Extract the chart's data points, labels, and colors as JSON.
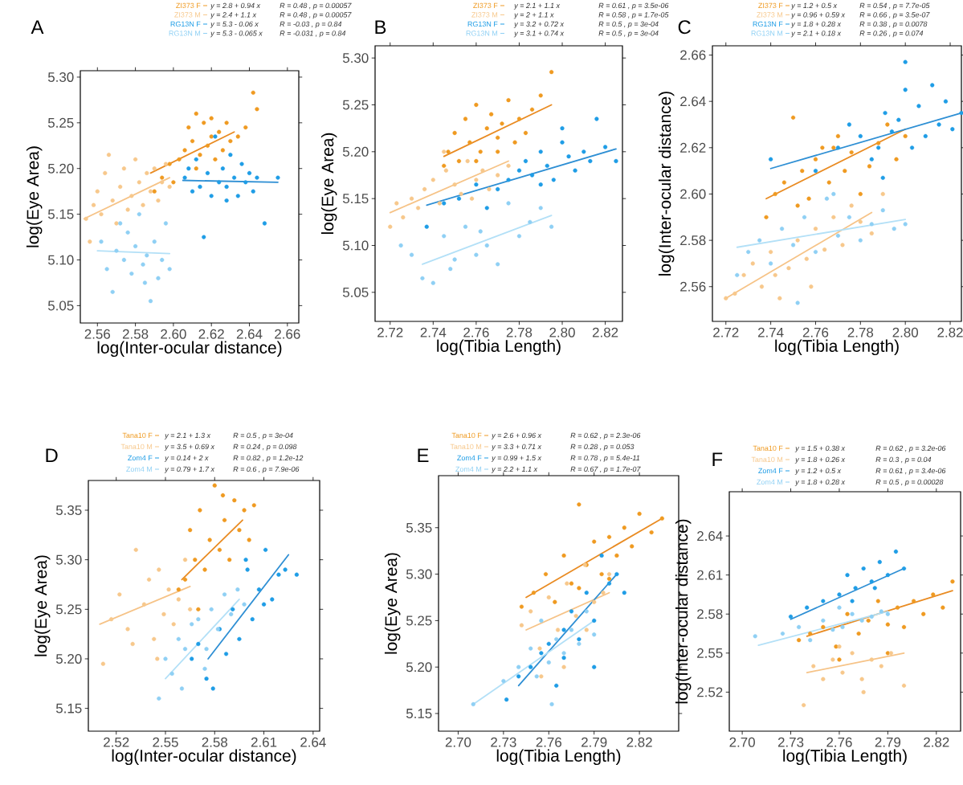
{
  "chart_data": [
    {
      "type": "scatter",
      "title": "A",
      "xlabel": "log(Inter-ocular distance)",
      "ylabel": "log(Eye Area)",
      "legend": "top",
      "xlim": [
        2.551,
        2.666
      ],
      "ylim": [
        5.031,
        5.307
      ],
      "xticks": [
        2.56,
        2.58,
        {
          "value": 2.6,
          "label": "2.60"
        },
        2.62,
        2.64,
        2.66
      ],
      "yticks": [
        5.05,
        {
          "value": 5.1,
          "label": "5.10"
        },
        5.15,
        {
          "value": 5.2,
          "label": "5.20"
        },
        5.25,
        {
          "value": 5.3,
          "label": "5.30"
        }
      ],
      "annotations": [
        "y = 2.8 + 0.94 x",
        "R = 0.48 , p = 0.00057",
        "y = 2.4 + 1.1 x",
        "R = 0.48 , p = 0.00057",
        "y = 5.3 - 0.06 x",
        "R = -0.03 , p = 0.84",
        "y = 5.3 - 0.065 x",
        "R = -0.031 , p = 0.84"
      ],
      "series": [
        {
          "name": "ZI373 F",
          "marker": "circle",
          "color": "#ef9a21",
          "x": [
            2.594,
            2.598,
            2.6,
            2.603,
            2.606,
            2.608,
            2.61,
            2.612,
            2.614,
            2.616,
            2.618,
            2.62,
            2.622,
            2.624,
            2.626,
            2.628,
            2.63,
            2.634,
            2.638,
            2.642,
            2.644,
            2.59,
            2.612,
            2.62
          ],
          "values": [
            5.19,
            5.205,
            5.185,
            5.21,
            5.22,
            5.245,
            5.23,
            5.26,
            5.215,
            5.25,
            5.225,
            5.235,
            5.21,
            5.24,
            5.22,
            5.25,
            5.23,
            5.235,
            5.245,
            5.283,
            5.265,
            5.175,
            5.2,
            5.255
          ]
        },
        {
          "name": "ZI373 M",
          "marker": "circle",
          "color": "#f7c88c",
          "x": [
            2.554,
            2.556,
            2.558,
            2.56,
            2.562,
            2.564,
            2.566,
            2.568,
            2.57,
            2.572,
            2.574,
            2.576,
            2.578,
            2.58,
            2.582,
            2.584,
            2.586,
            2.588,
            2.59,
            2.592,
            2.594,
            2.596,
            2.598
          ],
          "values": [
            5.145,
            5.12,
            5.16,
            5.175,
            5.15,
            5.195,
            5.215,
            5.165,
            5.14,
            5.18,
            5.2,
            5.155,
            5.17,
            5.21,
            5.185,
            5.16,
            5.195,
            5.175,
            5.2,
            5.165,
            5.185,
            5.205,
            5.18
          ]
        },
        {
          "name": "RG13N F",
          "marker": "circle",
          "color": "#1f9de6",
          "x": [
            2.606,
            2.608,
            2.61,
            2.612,
            2.614,
            2.616,
            2.618,
            2.62,
            2.622,
            2.624,
            2.626,
            2.628,
            2.63,
            2.632,
            2.634,
            2.636,
            2.638,
            2.64,
            2.642,
            2.644,
            2.648,
            2.655,
            2.628
          ],
          "values": [
            5.19,
            5.2,
            5.175,
            5.21,
            5.18,
            5.125,
            5.195,
            5.17,
            5.235,
            5.185,
            5.2,
            5.18,
            5.215,
            5.19,
            5.17,
            5.205,
            5.185,
            5.195,
            5.175,
            5.19,
            5.14,
            5.19,
            5.165
          ]
        },
        {
          "name": "RG13N M",
          "marker": "circle",
          "color": "#8fd0f4",
          "x": [
            2.562,
            2.565,
            2.568,
            2.57,
            2.572,
            2.574,
            2.576,
            2.578,
            2.58,
            2.582,
            2.584,
            2.586,
            2.588,
            2.59,
            2.592,
            2.594,
            2.596,
            2.598,
            2.585
          ],
          "values": [
            5.12,
            5.09,
            5.065,
            5.11,
            5.14,
            5.1,
            5.13,
            5.085,
            5.115,
            5.15,
            5.095,
            5.105,
            5.055,
            5.12,
            5.08,
            5.1,
            5.14,
            5.09,
            5.075
          ]
        },
        {
          "type": "line",
          "marker": "none",
          "color": "#e98b22",
          "x": [
            2.588,
            2.632
          ],
          "values": [
            5.195,
            5.24
          ]
        },
        {
          "type": "line",
          "marker": "none",
          "color": "#f6c387",
          "x": [
            2.553,
            2.598
          ],
          "values": [
            5.145,
            5.19
          ]
        },
        {
          "type": "line",
          "marker": "none",
          "color": "#2e8fd4",
          "x": [
            2.605,
            2.655
          ],
          "values": [
            5.187,
            5.185
          ]
        },
        {
          "type": "line",
          "marker": "none",
          "color": "#b3e0f7",
          "x": [
            2.56,
            2.598
          ],
          "values": [
            5.11,
            5.107
          ]
        }
      ]
    },
    {
      "type": "scatter",
      "title": "B",
      "xlabel": "log(Tibia Length)",
      "ylabel": "log(Eye Area)",
      "legend": "top",
      "xlim": [
        2.713,
        2.828
      ],
      "ylim": [
        5.019,
        5.313
      ],
      "xticks": [
        2.72,
        2.74,
        2.76,
        2.78,
        {
          "value": 2.8,
          "label": "2.80"
        },
        2.82
      ],
      "yticks": [
        5.05,
        {
          "value": 5.1,
          "label": "5.10"
        },
        5.15,
        {
          "value": 5.2,
          "label": "5.20"
        },
        5.25,
        {
          "value": 5.3,
          "label": "5.30"
        }
      ],
      "annotations": [
        "y = 2.1 + 1.1 x",
        "R = 0.61 , p = 3.5e-06",
        "y = 2 + 1.1 x",
        "R = 0.58 , p = 1.7e-05",
        "y = 3.2 + 0.72 x",
        "R = 0.5 , p = 3e-04",
        "y = 3.1 + 0.74 x",
        "R = 0.5 , p = 3e-04"
      ],
      "series": [
        {
          "name": "ZI373 F",
          "marker": "circle",
          "color": "#ef9a21",
          "x": [
            2.745,
            2.747,
            2.75,
            2.752,
            2.755,
            2.757,
            2.76,
            2.762,
            2.765,
            2.767,
            2.77,
            2.772,
            2.775,
            2.778,
            2.78,
            2.783,
            2.786,
            2.79,
            2.795,
            2.76,
            2.77
          ],
          "values": [
            5.185,
            5.2,
            5.22,
            5.19,
            5.235,
            5.21,
            5.25,
            5.2,
            5.225,
            5.24,
            5.215,
            5.23,
            5.255,
            5.21,
            5.235,
            5.22,
            5.245,
            5.26,
            5.285,
            5.19,
            5.2
          ]
        },
        {
          "name": "ZI373 M",
          "marker": "circle",
          "color": "#f7c88c",
          "x": [
            2.72,
            2.723,
            2.726,
            2.73,
            2.733,
            2.736,
            2.74,
            2.743,
            2.746,
            2.75,
            2.753,
            2.756,
            2.76,
            2.763,
            2.766,
            2.77,
            2.775,
            2.745,
            2.758
          ],
          "values": [
            5.12,
            5.145,
            5.13,
            5.15,
            5.14,
            5.16,
            5.17,
            5.145,
            5.18,
            5.165,
            5.155,
            5.19,
            5.17,
            5.18,
            5.16,
            5.175,
            5.185,
            5.2,
            5.15
          ]
        },
        {
          "name": "RG13N F",
          "marker": "circle",
          "color": "#1f9de6",
          "x": [
            2.737,
            2.745,
            2.752,
            2.76,
            2.765,
            2.77,
            2.775,
            2.78,
            2.783,
            2.786,
            2.79,
            2.793,
            2.796,
            2.8,
            2.803,
            2.806,
            2.81,
            2.813,
            2.816,
            2.82,
            2.825,
            2.79,
            2.8
          ],
          "values": [
            5.12,
            5.145,
            5.15,
            5.165,
            5.14,
            5.16,
            5.17,
            5.18,
            5.19,
            5.175,
            5.2,
            5.185,
            5.17,
            5.21,
            5.195,
            5.18,
            5.2,
            5.19,
            5.235,
            5.205,
            5.19,
            5.165,
            5.225
          ]
        },
        {
          "name": "RG13N M",
          "marker": "circle",
          "color": "#8fd0f4",
          "x": [
            2.725,
            2.73,
            2.735,
            2.74,
            2.745,
            2.75,
            2.755,
            2.76,
            2.765,
            2.77,
            2.775,
            2.78,
            2.785,
            2.79,
            2.795,
            2.748,
            2.762
          ],
          "values": [
            5.1,
            5.09,
            5.065,
            5.06,
            5.11,
            5.085,
            5.12,
            5.09,
            5.1,
            5.08,
            5.145,
            5.11,
            5.125,
            5.14,
            5.12,
            5.075,
            5.115
          ]
        },
        {
          "type": "line",
          "marker": "none",
          "color": "#e98b22",
          "x": [
            2.745,
            2.795
          ],
          "values": [
            5.195,
            5.25
          ]
        },
        {
          "type": "line",
          "marker": "none",
          "color": "#f6c387",
          "x": [
            2.72,
            2.775
          ],
          "values": [
            5.135,
            5.19
          ]
        },
        {
          "type": "line",
          "marker": "none",
          "color": "#2e8fd4",
          "x": [
            2.737,
            2.825
          ],
          "values": [
            5.143,
            5.203
          ]
        },
        {
          "type": "line",
          "marker": "none",
          "color": "#b3e0f7",
          "x": [
            2.735,
            2.795
          ],
          "values": [
            5.08,
            5.132
          ]
        }
      ]
    },
    {
      "type": "scatter",
      "title": "C",
      "xlabel": "log(Tibia Length)",
      "ylabel": "log(Inter-ocular distance)",
      "legend": "top",
      "xlim": [
        2.714,
        2.825
      ],
      "ylim": [
        2.545,
        2.664
      ],
      "xticks": [
        2.72,
        2.74,
        2.76,
        2.78,
        {
          "value": 2.8,
          "label": "2.80"
        },
        2.82
      ],
      "yticks": [
        2.56,
        2.58,
        {
          "value": 2.6,
          "label": "2.60"
        },
        2.62,
        2.64,
        2.66
      ],
      "annotations": [
        "y = 1.2 + 0.5 x",
        "R = 0.54 , p = 7.7e-05",
        "y = 0.96 + 0.59 x",
        "R = 0.66 , p = 3.5e-07",
        "y = 1.8 + 0.28 x",
        "R = 0.38 , p = 0.0078",
        "y = 2.1 + 0.18 x",
        "R = 0.26 , p = 0.074"
      ],
      "series": [
        {
          "name": "ZI373 F",
          "marker": "circle",
          "color": "#ef9a21",
          "x": [
            2.738,
            2.742,
            2.746,
            2.75,
            2.754,
            2.757,
            2.76,
            2.763,
            2.766,
            2.77,
            2.773,
            2.776,
            2.78,
            2.784,
            2.788,
            2.792,
            2.796,
            2.8,
            2.752,
            2.768
          ],
          "values": [
            2.59,
            2.6,
            2.605,
            2.633,
            2.61,
            2.598,
            2.615,
            2.62,
            2.605,
            2.625,
            2.61,
            2.618,
            2.6,
            2.612,
            2.622,
            2.63,
            2.615,
            2.625,
            2.595,
            2.62
          ]
        },
        {
          "name": "ZI373 M",
          "marker": "circle",
          "color": "#f7c88c",
          "x": [
            2.72,
            2.724,
            2.728,
            2.732,
            2.736,
            2.74,
            2.744,
            2.748,
            2.752,
            2.756,
            2.76,
            2.764,
            2.768,
            2.772,
            2.776,
            2.78,
            2.785,
            2.79,
            2.742,
            2.758
          ],
          "values": [
            2.555,
            2.557,
            2.565,
            2.57,
            2.56,
            2.575,
            2.555,
            2.568,
            2.58,
            2.572,
            2.585,
            2.576,
            2.59,
            2.578,
            2.595,
            2.588,
            2.583,
            2.6,
            2.565,
            2.56
          ]
        },
        {
          "name": "RG13N F",
          "marker": "circle",
          "color": "#1f9de6",
          "x": [
            2.74,
            2.76,
            2.77,
            2.775,
            2.78,
            2.785,
            2.788,
            2.791,
            2.794,
            2.797,
            2.8,
            2.803,
            2.806,
            2.809,
            2.812,
            2.815,
            2.818,
            2.821,
            2.825,
            2.8,
            2.79
          ],
          "values": [
            2.615,
            2.61,
            2.62,
            2.63,
            2.625,
            2.615,
            2.62,
            2.635,
            2.627,
            2.632,
            2.645,
            2.62,
            2.638,
            2.625,
            2.647,
            2.63,
            2.64,
            2.628,
            2.635,
            2.657,
            2.607
          ]
        },
        {
          "name": "RG13N M",
          "marker": "circle",
          "color": "#8fd0f4",
          "x": [
            2.725,
            2.73,
            2.735,
            2.74,
            2.745,
            2.75,
            2.755,
            2.76,
            2.765,
            2.77,
            2.775,
            2.78,
            2.785,
            2.79,
            2.795,
            2.8,
            2.752,
            2.768
          ],
          "values": [
            2.565,
            2.575,
            2.58,
            2.57,
            2.585,
            2.578,
            2.59,
            2.575,
            2.598,
            2.582,
            2.59,
            2.58,
            2.587,
            2.593,
            2.585,
            2.587,
            2.553,
            2.6
          ]
        },
        {
          "type": "line",
          "marker": "none",
          "color": "#e98b22",
          "x": [
            2.738,
            2.8
          ],
          "values": [
            2.598,
            2.628
          ]
        },
        {
          "type": "line",
          "marker": "none",
          "color": "#f6c387",
          "x": [
            2.72,
            2.785
          ],
          "values": [
            2.555,
            2.592
          ]
        },
        {
          "type": "line",
          "marker": "none",
          "color": "#2e8fd4",
          "x": [
            2.74,
            2.825
          ],
          "values": [
            2.611,
            2.635
          ]
        },
        {
          "type": "line",
          "marker": "none",
          "color": "#b3e0f7",
          "x": [
            2.725,
            2.8
          ],
          "values": [
            2.577,
            2.589
          ]
        }
      ]
    },
    {
      "type": "scatter",
      "title": "D",
      "xlabel": "log(Inter-ocular distance)",
      "ylabel": "log(Eye Area)",
      "legend": "top",
      "xlim": [
        2.503,
        2.644
      ],
      "ylim": [
        5.127,
        5.38
      ],
      "xticks": [
        2.52,
        2.55,
        2.58,
        2.61,
        2.64
      ],
      "yticks": [
        5.15,
        {
          "value": 5.2,
          "label": "5.20"
        },
        5.25,
        {
          "value": 5.3,
          "label": "5.30"
        },
        5.35
      ],
      "annotations": [
        "y = 2.1 + 1.3 x",
        "R = 0.5 , p = 3e-04",
        "y = 3.5 + 0.69 x",
        "R = 0.24 , p = 0.098",
        "y = 0.14 + 2 x",
        "R = 0.82 , p = 1.2e-12",
        "y = 0.79 + 1.7 x",
        "R = 0.6 , p = 7.9e-06"
      ],
      "series": [
        {
          "name": "Tana10 F",
          "marker": "circle",
          "color": "#ef9a21",
          "x": [
            2.558,
            2.562,
            2.565,
            2.568,
            2.571,
            2.574,
            2.577,
            2.58,
            2.583,
            2.586,
            2.589,
            2.592,
            2.595,
            2.598,
            2.601,
            2.604,
            2.57,
            2.585
          ],
          "values": [
            5.27,
            5.28,
            5.33,
            5.3,
            5.35,
            5.29,
            5.32,
            5.375,
            5.31,
            5.34,
            5.3,
            5.36,
            5.33,
            5.35,
            5.32,
            5.355,
            5.25,
            5.365
          ]
        },
        {
          "name": "Tana10 M",
          "marker": "circle",
          "color": "#f7c88c",
          "x": [
            2.512,
            2.517,
            2.522,
            2.527,
            2.532,
            2.537,
            2.54,
            2.543,
            2.546,
            2.549,
            2.552,
            2.555,
            2.558,
            2.562,
            2.565,
            2.53,
            2.545
          ],
          "values": [
            5.195,
            5.24,
            5.265,
            5.23,
            5.31,
            5.255,
            5.28,
            5.22,
            5.29,
            5.245,
            5.27,
            5.235,
            5.26,
            5.3,
            5.25,
            5.215,
            5.2
          ]
        },
        {
          "name": "Zom4 F",
          "marker": "circle",
          "color": "#1f9de6",
          "x": [
            2.566,
            2.57,
            2.575,
            2.579,
            2.583,
            2.587,
            2.591,
            2.595,
            2.599,
            2.603,
            2.607,
            2.611,
            2.615,
            2.619,
            2.623,
            2.63,
            2.6,
            2.61
          ],
          "values": [
            5.2,
            5.215,
            5.18,
            5.17,
            5.23,
            5.205,
            5.25,
            5.22,
            5.3,
            5.24,
            5.27,
            5.31,
            5.26,
            5.285,
            5.29,
            5.285,
            5.29,
            5.255
          ]
        },
        {
          "name": "Zom4 M",
          "marker": "circle",
          "color": "#8fd0f4",
          "x": [
            2.546,
            2.55,
            2.554,
            2.558,
            2.562,
            2.566,
            2.57,
            2.574,
            2.578,
            2.582,
            2.586,
            2.59,
            2.594,
            2.598,
            2.56,
            2.575
          ],
          "values": [
            5.16,
            5.2,
            5.185,
            5.22,
            5.21,
            5.235,
            5.24,
            5.19,
            5.25,
            5.23,
            5.265,
            5.245,
            5.27,
            5.255,
            5.17,
            5.21
          ]
        },
        {
          "type": "line",
          "marker": "none",
          "color": "#e98b22",
          "x": [
            2.56,
            2.597
          ],
          "values": [
            5.28,
            5.34
          ]
        },
        {
          "type": "line",
          "marker": "none",
          "color": "#f6c387",
          "x": [
            2.51,
            2.565
          ],
          "values": [
            5.235,
            5.273
          ]
        },
        {
          "type": "line",
          "marker": "none",
          "color": "#2e8fd4",
          "x": [
            2.576,
            2.625
          ],
          "values": [
            5.2,
            5.305
          ]
        },
        {
          "type": "line",
          "marker": "none",
          "color": "#b3e0f7",
          "x": [
            2.55,
            2.595
          ],
          "values": [
            5.18,
            5.26
          ]
        }
      ]
    },
    {
      "type": "scatter",
      "title": "E",
      "xlabel": "log(Tibia Length)",
      "ylabel": "log(Eye Area)",
      "legend": "top",
      "xlim": [
        2.687,
        2.846
      ],
      "ylim": [
        5.131,
        5.406
      ],
      "xticks": [
        {
          "value": 2.7,
          "label": "2.70"
        },
        2.73,
        2.76,
        2.79,
        2.82
      ],
      "yticks": [
        5.15,
        {
          "value": 5.2,
          "label": "5.20"
        },
        5.25,
        {
          "value": 5.3,
          "label": "5.30"
        },
        5.35
      ],
      "annotations": [
        "y = 2.6 + 0.96 x",
        "R = 0.62 , p = 2.3e-06",
        "y = 3.3 + 0.71 x",
        "R = 0.28 , p = 0.053",
        "y = 0.99 + 1.5 x",
        "R = 0.78 , p = 5.4e-11",
        "y = 2.2 + 1.1 x",
        "R = 0.67 , p = 1.7e-07"
      ],
      "series": [
        {
          "name": "Tana10 F",
          "marker": "circle",
          "color": "#ef9a21",
          "x": [
            2.742,
            2.75,
            2.758,
            2.764,
            2.77,
            2.775,
            2.78,
            2.785,
            2.79,
            2.795,
            2.8,
            2.805,
            2.81,
            2.815,
            2.82,
            2.828,
            2.835,
            2.78,
            2.8
          ],
          "values": [
            5.265,
            5.28,
            5.3,
            5.27,
            5.32,
            5.29,
            5.375,
            5.31,
            5.335,
            5.3,
            5.34,
            5.32,
            5.35,
            5.33,
            5.365,
            5.345,
            5.36,
            5.285,
            5.295
          ]
        },
        {
          "name": "Tana10 M",
          "marker": "circle",
          "color": "#f7c88c",
          "x": [
            2.742,
            2.748,
            2.754,
            2.76,
            2.766,
            2.772,
            2.778,
            2.784,
            2.79,
            2.796,
            2.8,
            2.755,
            2.77,
            2.785
          ],
          "values": [
            5.245,
            5.26,
            5.22,
            5.275,
            5.24,
            5.29,
            5.255,
            5.31,
            5.27,
            5.28,
            5.3,
            5.19,
            5.2,
            5.24
          ]
        },
        {
          "name": "Zom4 F",
          "marker": "circle",
          "color": "#1f9de6",
          "x": [
            2.732,
            2.74,
            2.748,
            2.755,
            2.76,
            2.765,
            2.77,
            2.775,
            2.78,
            2.785,
            2.79,
            2.795,
            2.8,
            2.805,
            2.81,
            2.77,
            2.79
          ],
          "values": [
            5.165,
            5.19,
            5.2,
            5.215,
            5.225,
            5.18,
            5.24,
            5.26,
            5.23,
            5.28,
            5.25,
            5.32,
            5.29,
            5.3,
            5.28,
            5.21,
            5.2
          ]
        },
        {
          "name": "Zom4 M",
          "marker": "circle",
          "color": "#8fd0f4",
          "x": [
            2.71,
            2.73,
            2.74,
            2.748,
            2.755,
            2.76,
            2.765,
            2.77,
            2.775,
            2.78,
            2.785,
            2.79,
            2.762,
            2.752
          ],
          "values": [
            5.16,
            5.185,
            5.2,
            5.22,
            5.25,
            5.205,
            5.23,
            5.215,
            5.24,
            5.225,
            5.26,
            5.235,
            5.16,
            5.19
          ]
        },
        {
          "type": "line",
          "marker": "none",
          "color": "#e98b22",
          "x": [
            2.745,
            2.835
          ],
          "values": [
            5.275,
            5.36
          ]
        },
        {
          "type": "line",
          "marker": "none",
          "color": "#f6c387",
          "x": [
            2.745,
            2.8
          ],
          "values": [
            5.24,
            5.28
          ]
        },
        {
          "type": "line",
          "marker": "none",
          "color": "#2e8fd4",
          "x": [
            2.74,
            2.805
          ],
          "values": [
            5.18,
            5.3
          ]
        },
        {
          "type": "line",
          "marker": "none",
          "color": "#b3e0f7",
          "x": [
            2.71,
            2.79
          ],
          "values": [
            5.16,
            5.25
          ]
        }
      ]
    },
    {
      "type": "scatter",
      "title": "F",
      "xlabel": "log(Tibia Length)",
      "ylabel": "log(Inter-ocular distance)",
      "legend": "top",
      "xlim": [
        2.692,
        2.835
      ],
      "ylim": [
        2.49,
        2.674
      ],
      "xticks": [
        {
          "value": 2.7,
          "label": "2.70"
        },
        2.73,
        2.76,
        2.79,
        2.82
      ],
      "yticks": [
        2.52,
        2.55,
        2.58,
        2.61,
        2.64
      ],
      "annotations": [
        "y = 1.5 + 0.38 x",
        "R = 0.62 , p = 3.2e-06",
        "y = 1.8 + 0.26 x",
        "R = 0.3 , p = 0.04",
        "y = 1.2 + 0.5 x",
        "R = 0.61 , p = 3.4e-06",
        "y = 1.8 + 0.28 x",
        "R = 0.5 , p = 0.00028"
      ],
      "series": [
        {
          "name": "Tana10 F",
          "marker": "circle",
          "color": "#ef9a21",
          "x": [
            2.735,
            2.742,
            2.75,
            2.758,
            2.765,
            2.772,
            2.778,
            2.784,
            2.79,
            2.796,
            2.8,
            2.806,
            2.812,
            2.818,
            2.824,
            2.83,
            2.76,
            2.79
          ],
          "values": [
            2.56,
            2.565,
            2.57,
            2.555,
            2.58,
            2.565,
            2.575,
            2.59,
            2.572,
            2.585,
            2.57,
            2.59,
            2.58,
            2.595,
            2.585,
            2.605,
            2.545,
            2.55
          ]
        },
        {
          "name": "Tana10 M",
          "marker": "circle",
          "color": "#f7c88c",
          "x": [
            2.738,
            2.744,
            2.75,
            2.756,
            2.762,
            2.768,
            2.774,
            2.78,
            2.786,
            2.792,
            2.8,
            2.76,
            2.775
          ],
          "values": [
            2.51,
            2.54,
            2.53,
            2.545,
            2.535,
            2.55,
            2.53,
            2.545,
            2.54,
            2.55,
            2.525,
            2.555,
            2.52
          ]
        },
        {
          "name": "Zom4 F",
          "marker": "circle",
          "color": "#1f9de6",
          "x": [
            2.73,
            2.74,
            2.75,
            2.76,
            2.765,
            2.77,
            2.775,
            2.78,
            2.785,
            2.79,
            2.795,
            2.8,
            2.782,
            2.768
          ],
          "values": [
            2.578,
            2.585,
            2.59,
            2.595,
            2.61,
            2.6,
            2.615,
            2.605,
            2.62,
            2.61,
            2.628,
            2.615,
            2.6,
            2.59
          ]
        },
        {
          "name": "Zom4 M",
          "marker": "circle",
          "color": "#8fd0f4",
          "x": [
            2.708,
            2.725,
            2.735,
            2.742,
            2.75,
            2.756,
            2.762,
            2.768,
            2.774,
            2.78,
            2.786,
            2.79,
            2.76
          ],
          "values": [
            2.563,
            2.565,
            2.57,
            2.56,
            2.575,
            2.568,
            2.57,
            2.58,
            2.575,
            2.578,
            2.582,
            2.58,
            2.585
          ]
        },
        {
          "type": "line",
          "marker": "none",
          "color": "#e98b22",
          "x": [
            2.74,
            2.83
          ],
          "values": [
            2.563,
            2.598
          ]
        },
        {
          "type": "line",
          "marker": "none",
          "color": "#f6c387",
          "x": [
            2.74,
            2.8
          ],
          "values": [
            2.535,
            2.55
          ]
        },
        {
          "type": "line",
          "marker": "none",
          "color": "#2e8fd4",
          "x": [
            2.73,
            2.8
          ],
          "values": [
            2.576,
            2.615
          ]
        },
        {
          "type": "line",
          "marker": "none",
          "color": "#b3e0f7",
          "x": [
            2.71,
            2.79
          ],
          "values": [
            2.556,
            2.582
          ]
        }
      ]
    }
  ]
}
